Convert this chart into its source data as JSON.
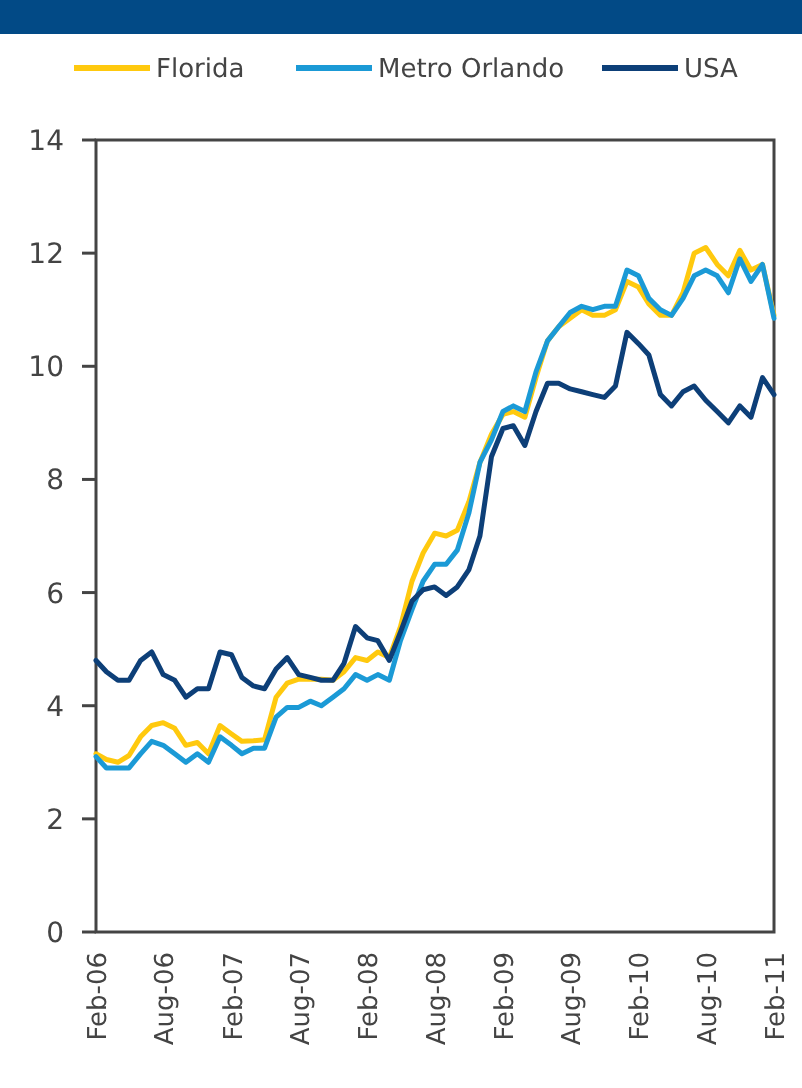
{
  "chart_data": {
    "type": "line",
    "x": [
      "2006-02",
      "2006-03",
      "2006-04",
      "2006-05",
      "2006-06",
      "2006-07",
      "2006-08",
      "2006-09",
      "2006-10",
      "2006-11",
      "2006-12",
      "2007-01",
      "2007-02",
      "2007-03",
      "2007-04",
      "2007-05",
      "2007-06",
      "2007-07",
      "2007-08",
      "2007-09",
      "2007-10",
      "2007-11",
      "2007-12",
      "2008-01",
      "2008-02",
      "2008-03",
      "2008-04",
      "2008-05",
      "2008-06",
      "2008-07",
      "2008-08",
      "2008-09",
      "2008-10",
      "2008-11",
      "2008-12",
      "2009-01",
      "2009-02",
      "2009-03",
      "2009-04",
      "2009-05",
      "2009-06",
      "2009-07",
      "2009-08",
      "2009-09",
      "2009-10",
      "2009-11",
      "2009-12",
      "2010-01",
      "2010-02",
      "2010-03",
      "2010-04",
      "2010-05",
      "2010-06",
      "2010-07",
      "2010-08",
      "2010-09",
      "2010-10",
      "2010-11",
      "2010-12",
      "2011-01",
      "2011-02"
    ],
    "series": [
      {
        "name": "Florida",
        "color": "#ffc90e",
        "values": [
          3.15,
          3.05,
          3.0,
          3.12,
          3.45,
          3.65,
          3.7,
          3.6,
          3.3,
          3.35,
          3.15,
          3.65,
          3.5,
          3.37,
          3.38,
          3.4,
          4.15,
          4.4,
          4.47,
          4.47,
          4.47,
          4.45,
          4.6,
          4.85,
          4.8,
          4.95,
          4.85,
          5.4,
          6.2,
          6.7,
          7.05,
          7.0,
          7.1,
          7.6,
          8.3,
          8.8,
          9.15,
          9.2,
          9.1,
          9.8,
          10.45,
          10.7,
          10.85,
          11.0,
          10.9,
          10.9,
          11.0,
          11.5,
          11.4,
          11.1,
          10.9,
          10.9,
          11.3,
          12.0,
          12.1,
          11.8,
          11.6,
          12.05,
          11.7,
          11.8,
          10.9
        ]
      },
      {
        "name": "Metro Orlando",
        "color": "#1b9ad6",
        "values": [
          3.1,
          2.9,
          2.9,
          2.9,
          3.15,
          3.37,
          3.3,
          3.15,
          3.0,
          3.15,
          3.0,
          3.45,
          3.3,
          3.15,
          3.25,
          3.25,
          3.8,
          3.97,
          3.97,
          4.08,
          4.0,
          4.15,
          4.3,
          4.55,
          4.45,
          4.55,
          4.45,
          5.15,
          5.7,
          6.2,
          6.5,
          6.5,
          6.75,
          7.4,
          8.3,
          8.7,
          9.2,
          9.3,
          9.2,
          9.9,
          10.45,
          10.7,
          10.95,
          11.06,
          11.0,
          11.06,
          11.06,
          11.7,
          11.6,
          11.2,
          11.0,
          10.9,
          11.2,
          11.6,
          11.7,
          11.6,
          11.3,
          11.9,
          11.5,
          11.8,
          10.85
        ]
      },
      {
        "name": "USA",
        "color": "#0d3f78",
        "values": [
          4.8,
          4.6,
          4.45,
          4.45,
          4.8,
          4.95,
          4.55,
          4.45,
          4.15,
          4.3,
          4.3,
          4.95,
          4.9,
          4.5,
          4.35,
          4.3,
          4.65,
          4.85,
          4.55,
          4.5,
          4.45,
          4.45,
          4.75,
          5.4,
          5.2,
          5.15,
          4.8,
          5.3,
          5.85,
          6.05,
          6.1,
          5.95,
          6.1,
          6.4,
          7.0,
          8.4,
          8.9,
          8.95,
          8.6,
          9.2,
          9.7,
          9.7,
          9.6,
          9.55,
          9.5,
          9.45,
          9.65,
          10.6,
          10.4,
          10.2,
          9.5,
          9.3,
          9.55,
          9.65,
          9.4,
          9.2,
          9.0,
          9.3,
          9.1,
          9.8,
          9.5
        ]
      }
    ],
    "xlim": [
      "2006-02",
      "2011-02"
    ],
    "xticks": [
      {
        "value": "2006-02",
        "label": "Feb-06"
      },
      {
        "value": "2006-08",
        "label": "Aug-06"
      },
      {
        "value": "2007-02",
        "label": "Feb-07"
      },
      {
        "value": "2007-08",
        "label": "Aug-07"
      },
      {
        "value": "2008-02",
        "label": "Feb-08"
      },
      {
        "value": "2008-08",
        "label": "Aug-08"
      },
      {
        "value": "2009-02",
        "label": "Feb-09"
      },
      {
        "value": "2009-08",
        "label": "Aug-09"
      },
      {
        "value": "2010-02",
        "label": "Feb-10"
      },
      {
        "value": "2010-08",
        "label": "Aug-10"
      },
      {
        "value": "2011-02",
        "label": "Feb-11"
      }
    ],
    "ylim": [
      0,
      14
    ],
    "yticks": [
      0,
      2,
      4,
      6,
      8,
      10,
      12,
      14
    ],
    "grid": false,
    "legend": "top",
    "marker": "none",
    "line_style": "solid"
  }
}
